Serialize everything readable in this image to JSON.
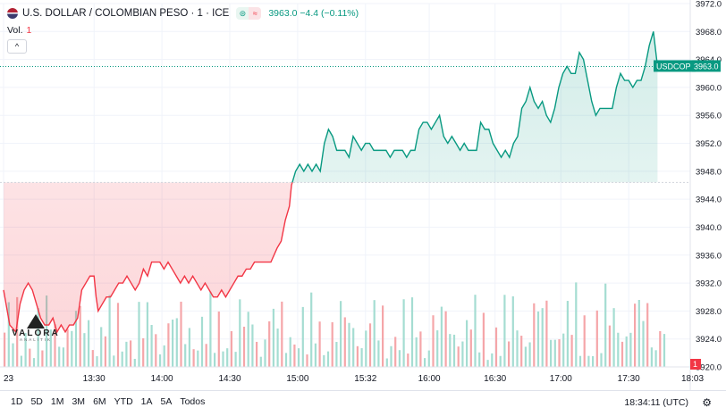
{
  "header": {
    "symbol_title": "U.S. DOLLAR / COLOMBIAN PESO · 1 · ICE",
    "price_line": "3963.0  −4.4 (−0.11%)",
    "pill_left": "⊜",
    "pill_right": "≈"
  },
  "volume_label": "Vol.",
  "volume_value": "1",
  "collapse_icon": "^",
  "logo": {
    "name": "VALORA",
    "sub": "ANALITIK"
  },
  "price_tag": {
    "symbol": "USDCOP",
    "value": "3963.0"
  },
  "volume_tag": "1",
  "time_ranges": [
    "1D",
    "5D",
    "1M",
    "3M",
    "6M",
    "YTD",
    "1A",
    "5A",
    "Todos"
  ],
  "clock": "18:34:11 (UTC)",
  "colors": {
    "up": "#089981",
    "down": "#f23645",
    "up_fill": "#e9f6f1",
    "down_fill": "#fde5e7"
  },
  "chart_data": {
    "type": "area",
    "title": "U.S. DOLLAR / COLOMBIAN PESO · 1 · ICE",
    "baseline": 3946.4,
    "last_price": 3963.0,
    "ylim": [
      3920.0,
      3972.0
    ],
    "y_ticks": [
      "3972.0",
      "3968.0",
      "3964.0",
      "3960.0",
      "3956.0",
      "3952.0",
      "3948.0",
      "3944.0",
      "3940.0",
      "3936.0",
      "3932.0",
      "3928.0",
      "3924.0",
      "3920.0"
    ],
    "x_labels": [
      {
        "label": "23",
        "t": 0
      },
      {
        "label": "13:30",
        "t": 44
      },
      {
        "label": "14:00",
        "t": 77
      },
      {
        "label": "14:30",
        "t": 110
      },
      {
        "label": "15:00",
        "t": 143
      },
      {
        "label": "15:32",
        "t": 176
      },
      {
        "label": "16:00",
        "t": 207
      },
      {
        "label": "16:30",
        "t": 239
      },
      {
        "label": "17:00",
        "t": 271
      },
      {
        "label": "17:30",
        "t": 304
      },
      {
        "label": "18:03",
        "t": 335
      }
    ],
    "price": [
      [
        0,
        3931
      ],
      [
        3,
        3926
      ],
      [
        6,
        3925
      ],
      [
        8,
        3929
      ],
      [
        10,
        3931
      ],
      [
        12,
        3932
      ],
      [
        14,
        3931
      ],
      [
        16,
        3929
      ],
      [
        18,
        3927
      ],
      [
        20,
        3926
      ],
      [
        22,
        3926
      ],
      [
        24,
        3927
      ],
      [
        26,
        3925
      ],
      [
        28,
        3926
      ],
      [
        30,
        3925
      ],
      [
        32,
        3926
      ],
      [
        34,
        3926
      ],
      [
        36,
        3927
      ],
      [
        38,
        3931
      ],
      [
        40,
        3932
      ],
      [
        42,
        3933
      ],
      [
        44,
        3933
      ],
      [
        45,
        3930
      ],
      [
        46,
        3928
      ],
      [
        48,
        3929
      ],
      [
        50,
        3930
      ],
      [
        52,
        3930
      ],
      [
        54,
        3931
      ],
      [
        56,
        3932
      ],
      [
        58,
        3932
      ],
      [
        60,
        3933
      ],
      [
        62,
        3932
      ],
      [
        64,
        3931
      ],
      [
        66,
        3932
      ],
      [
        68,
        3934
      ],
      [
        70,
        3933
      ],
      [
        72,
        3935
      ],
      [
        74,
        3935
      ],
      [
        76,
        3935
      ],
      [
        78,
        3934
      ],
      [
        80,
        3935
      ],
      [
        82,
        3934
      ],
      [
        84,
        3933
      ],
      [
        86,
        3932
      ],
      [
        88,
        3933
      ],
      [
        90,
        3932
      ],
      [
        92,
        3933
      ],
      [
        94,
        3932
      ],
      [
        96,
        3931
      ],
      [
        98,
        3932
      ],
      [
        100,
        3931
      ],
      [
        102,
        3930
      ],
      [
        104,
        3930
      ],
      [
        106,
        3931
      ],
      [
        108,
        3930
      ],
      [
        110,
        3931
      ],
      [
        112,
        3932
      ],
      [
        114,
        3933
      ],
      [
        116,
        3933
      ],
      [
        118,
        3934
      ],
      [
        120,
        3934
      ],
      [
        122,
        3935
      ],
      [
        124,
        3935
      ],
      [
        126,
        3935
      ],
      [
        128,
        3935
      ],
      [
        130,
        3935
      ],
      [
        133,
        3937
      ],
      [
        135,
        3938
      ],
      [
        137,
        3941
      ],
      [
        139,
        3943
      ],
      [
        140,
        3946
      ],
      [
        142,
        3948
      ],
      [
        144,
        3949
      ],
      [
        146,
        3948
      ],
      [
        148,
        3949
      ],
      [
        150,
        3948
      ],
      [
        152,
        3949
      ],
      [
        154,
        3948
      ],
      [
        156,
        3952
      ],
      [
        158,
        3954
      ],
      [
        160,
        3953
      ],
      [
        162,
        3951
      ],
      [
        164,
        3951
      ],
      [
        166,
        3951
      ],
      [
        168,
        3950
      ],
      [
        170,
        3953
      ],
      [
        172,
        3952
      ],
      [
        174,
        3951
      ],
      [
        176,
        3952
      ],
      [
        178,
        3952
      ],
      [
        180,
        3951
      ],
      [
        182,
        3951
      ],
      [
        184,
        3951
      ],
      [
        186,
        3951
      ],
      [
        188,
        3950
      ],
      [
        190,
        3951
      ],
      [
        192,
        3951
      ],
      [
        194,
        3951
      ],
      [
        196,
        3950
      ],
      [
        198,
        3951
      ],
      [
        200,
        3951
      ],
      [
        202,
        3954
      ],
      [
        204,
        3955
      ],
      [
        206,
        3955
      ],
      [
        208,
        3954
      ],
      [
        210,
        3955
      ],
      [
        212,
        3956
      ],
      [
        214,
        3953
      ],
      [
        216,
        3952
      ],
      [
        218,
        3953
      ],
      [
        220,
        3952
      ],
      [
        222,
        3951
      ],
      [
        224,
        3952
      ],
      [
        226,
        3951
      ],
      [
        228,
        3951
      ],
      [
        230,
        3951
      ],
      [
        232,
        3955
      ],
      [
        234,
        3954
      ],
      [
        236,
        3954
      ],
      [
        238,
        3952
      ],
      [
        240,
        3951
      ],
      [
        242,
        3950
      ],
      [
        244,
        3951
      ],
      [
        246,
        3950
      ],
      [
        248,
        3952
      ],
      [
        250,
        3953
      ],
      [
        252,
        3957
      ],
      [
        254,
        3958
      ],
      [
        256,
        3960
      ],
      [
        258,
        3958
      ],
      [
        260,
        3957
      ],
      [
        262,
        3958
      ],
      [
        264,
        3956
      ],
      [
        266,
        3955
      ],
      [
        268,
        3957
      ],
      [
        270,
        3960
      ],
      [
        272,
        3962
      ],
      [
        274,
        3963
      ],
      [
        276,
        3962
      ],
      [
        278,
        3962
      ],
      [
        280,
        3965
      ],
      [
        282,
        3964
      ],
      [
        284,
        3961
      ],
      [
        286,
        3958
      ],
      [
        288,
        3956
      ],
      [
        290,
        3957
      ],
      [
        292,
        3957
      ],
      [
        294,
        3957
      ],
      [
        296,
        3957
      ],
      [
        298,
        3960
      ],
      [
        300,
        3962
      ],
      [
        302,
        3961
      ],
      [
        304,
        3961
      ],
      [
        306,
        3960
      ],
      [
        308,
        3961
      ],
      [
        310,
        3961
      ],
      [
        312,
        3963
      ],
      [
        314,
        3966
      ],
      [
        316,
        3968
      ],
      [
        318,
        3963
      ]
    ],
    "volume_scale_max": 34,
    "volume_bars": []
  }
}
